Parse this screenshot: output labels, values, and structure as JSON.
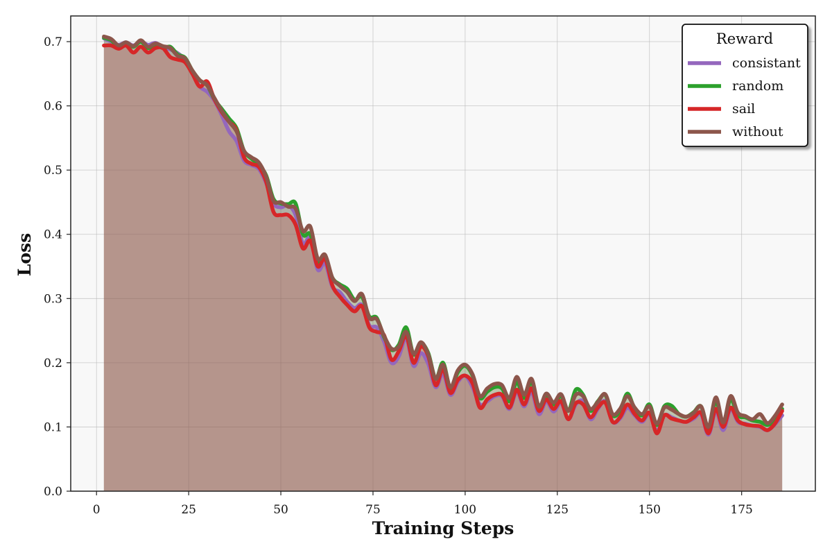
{
  "chart_data": {
    "type": "line",
    "xlabel": "Training Steps",
    "ylabel": "Loss",
    "xlim": [
      -7,
      195
    ],
    "ylim": [
      0.0,
      0.74
    ],
    "xticks": [
      0,
      25,
      50,
      75,
      100,
      125,
      150,
      175
    ],
    "yticks": [
      0.0,
      0.1,
      0.2,
      0.3,
      0.4,
      0.5,
      0.6,
      0.7
    ],
    "grid": true,
    "filled_area": true,
    "legend": {
      "title": "Reward",
      "placement": "top-right"
    },
    "x": [
      2,
      4,
      6,
      8,
      10,
      12,
      14,
      16,
      18,
      20,
      22,
      24,
      26,
      28,
      30,
      32,
      34,
      36,
      38,
      40,
      42,
      44,
      46,
      48,
      50,
      52,
      54,
      56,
      58,
      60,
      62,
      64,
      66,
      68,
      70,
      72,
      74,
      76,
      78,
      80,
      82,
      84,
      86,
      88,
      90,
      92,
      94,
      96,
      98,
      100,
      102,
      104,
      106,
      108,
      110,
      112,
      114,
      116,
      118,
      120,
      122,
      124,
      126,
      128,
      130,
      132,
      134,
      136,
      138,
      140,
      142,
      144,
      146,
      148,
      150,
      152,
      154,
      156,
      158,
      160,
      162,
      164,
      166,
      168,
      170,
      172,
      174,
      176,
      178,
      180,
      182,
      184,
      186
    ],
    "series": [
      {
        "name": "consistant",
        "color": "#9467bd",
        "values": [
          0.705,
          0.7,
          0.695,
          0.699,
          0.694,
          0.7,
          0.695,
          0.698,
          0.691,
          0.688,
          0.682,
          0.672,
          0.65,
          0.63,
          0.622,
          0.608,
          0.585,
          0.56,
          0.545,
          0.515,
          0.508,
          0.502,
          0.48,
          0.448,
          0.442,
          0.445,
          0.43,
          0.385,
          0.395,
          0.345,
          0.355,
          0.318,
          0.31,
          0.295,
          0.285,
          0.29,
          0.258,
          0.255,
          0.233,
          0.2,
          0.21,
          0.238,
          0.195,
          0.215,
          0.198,
          0.162,
          0.183,
          0.15,
          0.17,
          0.18,
          0.162,
          0.135,
          0.14,
          0.148,
          0.148,
          0.128,
          0.155,
          0.132,
          0.155,
          0.12,
          0.14,
          0.124,
          0.138,
          0.112,
          0.135,
          0.14,
          0.112,
          0.128,
          0.14,
          0.108,
          0.113,
          0.13,
          0.118,
          0.108,
          0.12,
          0.093,
          0.118,
          0.115,
          0.11,
          0.108,
          0.113,
          0.12,
          0.088,
          0.125,
          0.095,
          0.128,
          0.108,
          0.105,
          0.102,
          0.1,
          0.095,
          0.104,
          0.118
        ]
      },
      {
        "name": "random",
        "color": "#2ca02c",
        "values": [
          0.706,
          0.702,
          0.692,
          0.697,
          0.692,
          0.7,
          0.69,
          0.695,
          0.69,
          0.692,
          0.68,
          0.675,
          0.655,
          0.64,
          0.632,
          0.61,
          0.595,
          0.58,
          0.565,
          0.53,
          0.518,
          0.508,
          0.492,
          0.455,
          0.448,
          0.447,
          0.448,
          0.4,
          0.4,
          0.358,
          0.362,
          0.332,
          0.322,
          0.315,
          0.298,
          0.303,
          0.272,
          0.27,
          0.24,
          0.22,
          0.228,
          0.255,
          0.213,
          0.23,
          0.215,
          0.175,
          0.2,
          0.16,
          0.185,
          0.195,
          0.18,
          0.145,
          0.155,
          0.162,
          0.16,
          0.14,
          0.17,
          0.145,
          0.17,
          0.13,
          0.15,
          0.135,
          0.148,
          0.125,
          0.158,
          0.15,
          0.125,
          0.14,
          0.15,
          0.118,
          0.125,
          0.152,
          0.128,
          0.118,
          0.135,
          0.103,
          0.132,
          0.133,
          0.12,
          0.116,
          0.123,
          0.132,
          0.098,
          0.14,
          0.105,
          0.143,
          0.118,
          0.115,
          0.11,
          0.108,
          0.103,
          0.11,
          0.128
        ]
      },
      {
        "name": "sail",
        "color": "#d62728",
        "values": [
          0.694,
          0.694,
          0.689,
          0.694,
          0.683,
          0.692,
          0.683,
          0.69,
          0.69,
          0.676,
          0.672,
          0.668,
          0.65,
          0.63,
          0.638,
          0.61,
          0.59,
          0.575,
          0.562,
          0.52,
          0.51,
          0.505,
          0.482,
          0.435,
          0.43,
          0.43,
          0.415,
          0.378,
          0.39,
          0.35,
          0.362,
          0.32,
          0.303,
          0.29,
          0.28,
          0.288,
          0.255,
          0.248,
          0.243,
          0.205,
          0.218,
          0.242,
          0.2,
          0.225,
          0.21,
          0.165,
          0.19,
          0.153,
          0.173,
          0.18,
          0.168,
          0.13,
          0.143,
          0.15,
          0.15,
          0.13,
          0.158,
          0.135,
          0.16,
          0.125,
          0.143,
          0.128,
          0.14,
          0.112,
          0.137,
          0.135,
          0.115,
          0.13,
          0.138,
          0.108,
          0.115,
          0.135,
          0.12,
          0.11,
          0.122,
          0.09,
          0.118,
          0.113,
          0.11,
          0.108,
          0.115,
          0.122,
          0.09,
          0.128,
          0.1,
          0.13,
          0.11,
          0.104,
          0.102,
          0.101,
          0.095,
          0.105,
          0.125
        ]
      },
      {
        "name": "without",
        "color": "#8c564b",
        "values": [
          0.708,
          0.704,
          0.694,
          0.699,
          0.693,
          0.702,
          0.692,
          0.697,
          0.693,
          0.69,
          0.678,
          0.674,
          0.655,
          0.64,
          0.632,
          0.612,
          0.592,
          0.575,
          0.56,
          0.53,
          0.52,
          0.512,
          0.49,
          0.452,
          0.45,
          0.443,
          0.44,
          0.405,
          0.412,
          0.362,
          0.368,
          0.332,
          0.32,
          0.31,
          0.296,
          0.307,
          0.27,
          0.268,
          0.242,
          0.222,
          0.225,
          0.248,
          0.214,
          0.232,
          0.213,
          0.175,
          0.197,
          0.162,
          0.188,
          0.197,
          0.182,
          0.148,
          0.16,
          0.167,
          0.165,
          0.145,
          0.178,
          0.15,
          0.175,
          0.132,
          0.152,
          0.138,
          0.151,
          0.125,
          0.15,
          0.148,
          0.128,
          0.139,
          0.151,
          0.12,
          0.128,
          0.148,
          0.13,
          0.12,
          0.132,
          0.105,
          0.13,
          0.127,
          0.12,
          0.116,
          0.122,
          0.132,
          0.1,
          0.146,
          0.107,
          0.148,
          0.122,
          0.117,
          0.112,
          0.12,
          0.106,
          0.117,
          0.135
        ]
      }
    ]
  }
}
